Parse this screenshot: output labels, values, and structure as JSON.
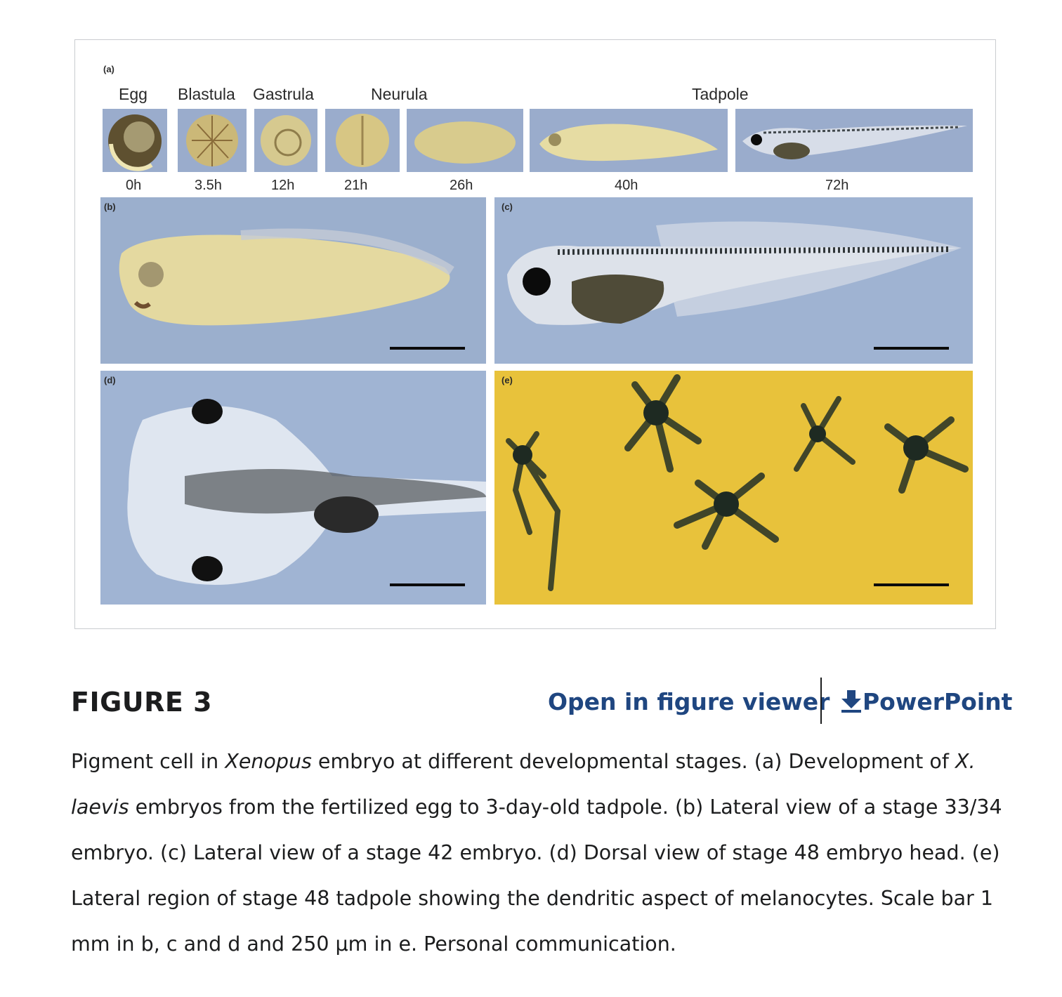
{
  "figure": {
    "panel_a": {
      "letter": "(a)",
      "stages": [
        "Egg",
        "Blastula",
        "Gastrula",
        "Neurula",
        "Tadpole"
      ],
      "times": [
        "0h",
        "3.5h",
        "12h",
        "21h",
        "26h",
        "40h",
        "72h"
      ]
    },
    "panel_b_letter": "(b)",
    "panel_c_letter": "(c)",
    "panel_d_letter": "(d)",
    "panel_e_letter": "(e)",
    "colors": {
      "panel_bg": "#9aaccc",
      "embryo": "#e3d79a",
      "melanocyte_bg": "#e9c23a",
      "pigment": "#1f2a22"
    }
  },
  "caption": {
    "label": "FIGURE 3",
    "open_viewer": "Open in figure viewer",
    "powerpoint": "PowerPoint",
    "text_parts": [
      "Pigment cell in ",
      "Xenopus",
      " embryo at different developmental stages. (a) Development of ",
      "X. laevis",
      " embryos from the fertilized egg to 3-day-old tadpole. (b) Lateral view of a stage 33/34 embryo. (c) Lateral view of a stage 42 embryo. (d) Dorsal view of stage 48 embryo head. (e) Lateral region of stage 48 tadpole showing the dendritic aspect of melanocytes. Scale bar 1 mm in b, c and d and 250 μm in e. Personal communication."
    ]
  }
}
